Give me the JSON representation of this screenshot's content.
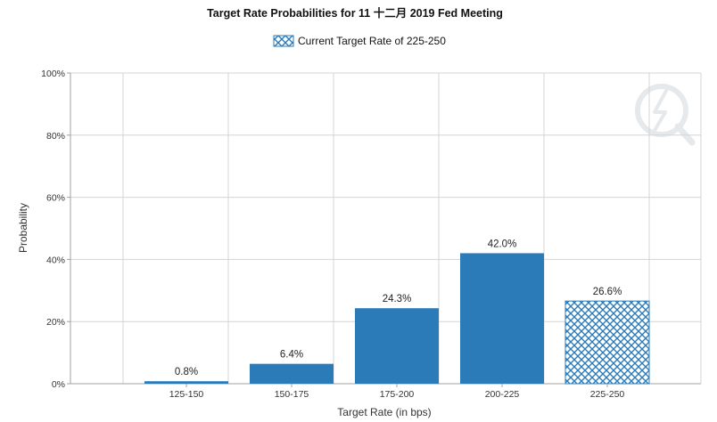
{
  "chart_data": {
    "type": "bar",
    "title": "Target Rate Probabilities for 11 十二月 2019 Fed Meeting",
    "legend": [
      "Current Target Rate of 225-250"
    ],
    "legend_placement": "top-center",
    "xlabel": "Target Rate (in bps)",
    "ylabel": "Probability",
    "categories": [
      "125-150",
      "150-175",
      "175-200",
      "200-225",
      "225-250"
    ],
    "values": [
      0.8,
      6.4,
      24.3,
      42.0,
      26.6
    ],
    "data_labels": [
      "0.8%",
      "6.4%",
      "24.3%",
      "42.0%",
      "26.6%"
    ],
    "highlighted_category": "225-250",
    "ylim": [
      0,
      100
    ],
    "yticks": [
      0,
      20,
      40,
      60,
      80,
      100
    ],
    "ytick_labels": [
      "0%",
      "20%",
      "40%",
      "60%",
      "80%",
      "100%"
    ],
    "grid": true,
    "colors": {
      "bar": "#2b7bb9",
      "grid": "#d4d4d4",
      "axis": "#a0a0a0",
      "pattern_bg": "#ffffff"
    }
  }
}
